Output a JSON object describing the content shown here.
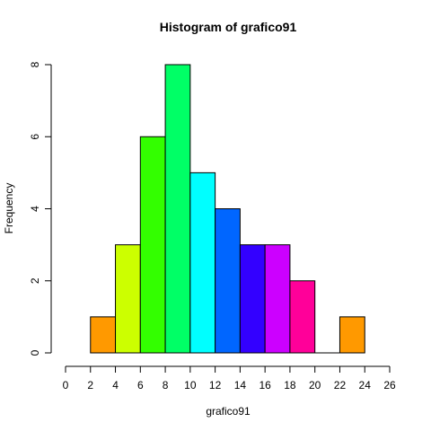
{
  "chart_data": {
    "type": "bar",
    "title": "Histogram of grafico91",
    "xlabel": "grafico91",
    "ylabel": "Frequency",
    "bins": [
      {
        "from": 2,
        "to": 4,
        "count": 1,
        "color": "#FF9900"
      },
      {
        "from": 4,
        "to": 6,
        "count": 3,
        "color": "#CCFF00"
      },
      {
        "from": 6,
        "to": 8,
        "count": 6,
        "color": "#33FF00"
      },
      {
        "from": 8,
        "to": 10,
        "count": 8,
        "color": "#00FF66"
      },
      {
        "from": 10,
        "to": 12,
        "count": 5,
        "color": "#00FFFF"
      },
      {
        "from": 12,
        "to": 14,
        "count": 4,
        "color": "#0066FF"
      },
      {
        "from": 14,
        "to": 16,
        "count": 3,
        "color": "#3300FF"
      },
      {
        "from": 16,
        "to": 18,
        "count": 3,
        "color": "#CC00FF"
      },
      {
        "from": 18,
        "to": 20,
        "count": 2,
        "color": "#FF0099"
      },
      {
        "from": 20,
        "to": 22,
        "count": 0,
        "color": "#FF0000"
      },
      {
        "from": 22,
        "to": 24,
        "count": 1,
        "color": "#FF9900"
      }
    ],
    "xlim": [
      0,
      26
    ],
    "ylim": [
      0,
      8
    ],
    "xticks": [
      0,
      2,
      4,
      6,
      8,
      10,
      12,
      14,
      16,
      18,
      20,
      22,
      24,
      26
    ],
    "yticks": [
      0,
      2,
      4,
      6,
      8
    ],
    "grid": false,
    "legend": "none"
  }
}
